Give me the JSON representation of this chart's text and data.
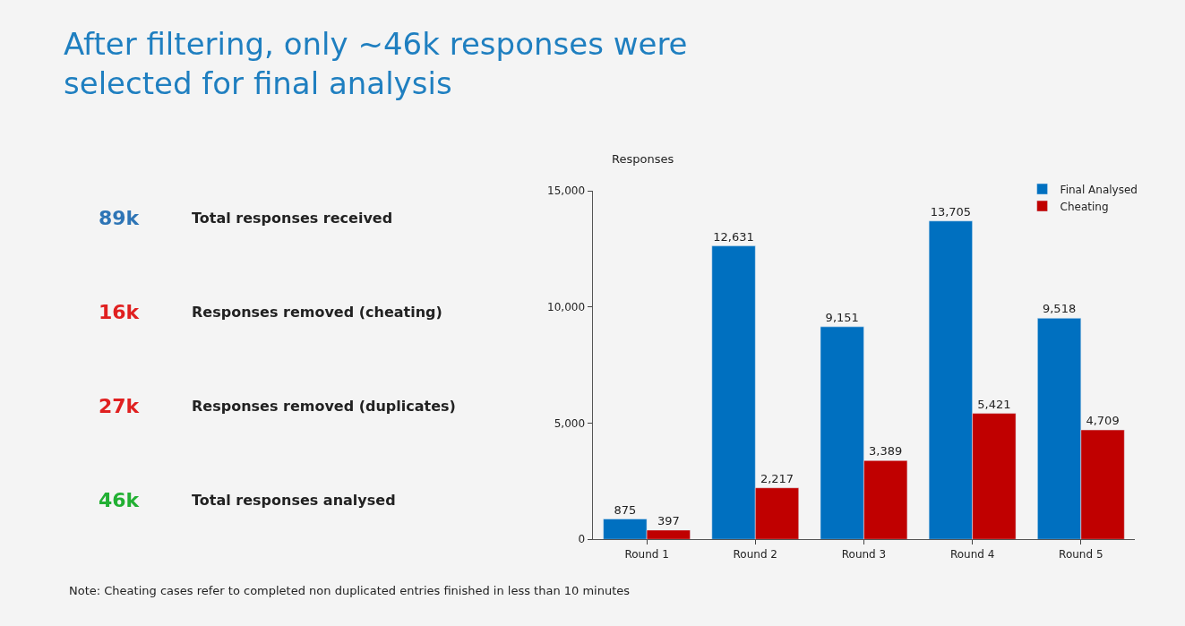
{
  "chart_data": [
    {
      "type": "other",
      "title": "After filtering, only ~46k responses were selected for final analysis",
      "annotations": [
        "89k",
        "Total responses received",
        "16k",
        "Responses removed (cheating)",
        "27k",
        "Responses removed (duplicates)",
        "46k",
        "Total responses analysed"
      ],
      "colors": [
        "#2e75b6",
        "#e02020",
        "#e02020",
        "#22b033"
      ]
    },
    {
      "type": "bar",
      "ylabel": "Responses",
      "categories": [
        "Round 1",
        "Round 2",
        "Round 3",
        "Round 4",
        "Round 5"
      ],
      "series": [
        {
          "name": "Final Analysed",
          "color": "#0070c0",
          "values": [
            875,
            12631,
            9151,
            13705,
            9518
          ]
        },
        {
          "name": "Cheating",
          "color": "#c00000",
          "values": [
            397,
            2217,
            3389,
            5421,
            4709
          ]
        }
      ],
      "ylim": [
        0,
        15000
      ],
      "yticks": [
        0,
        {
          "value": 5000,
          "label": "5,000"
        },
        {
          "value": 10000,
          "label": "10,000"
        },
        {
          "value": 15000,
          "label": "15,000"
        }
      ],
      "value_labels": [
        [
          "875",
          "12,631",
          "9,151",
          "13,705",
          "9,518"
        ],
        [
          "397",
          "2,217",
          "3,389",
          "5,421",
          "4,709"
        ]
      ],
      "legend": "top right",
      "grid": false,
      "annotations": [
        "Note: Cheating cases refer to completed non duplicated entries finished in less than 10 minutes"
      ]
    }
  ]
}
